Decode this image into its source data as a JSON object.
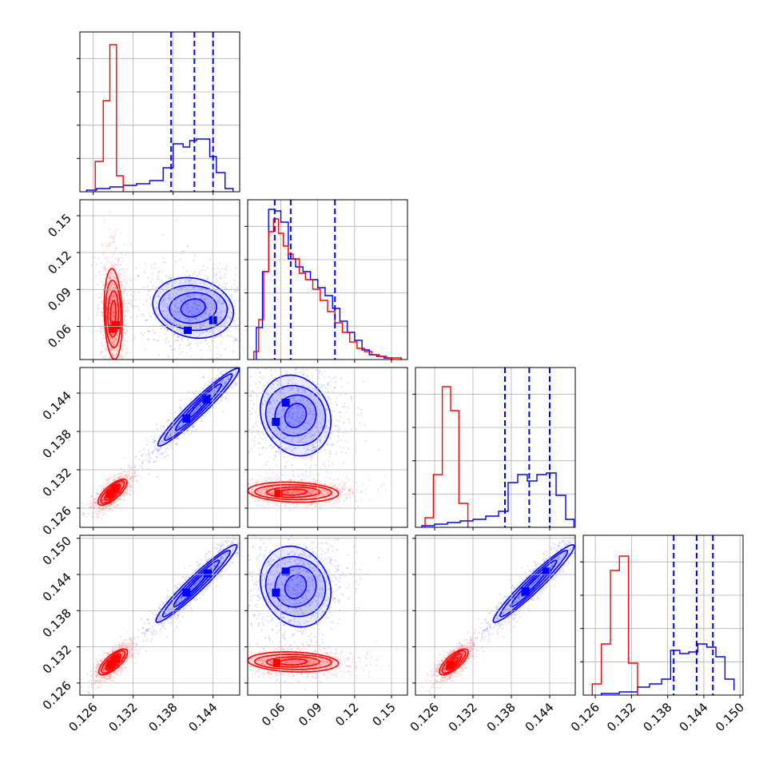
{
  "chart_data": {
    "type": "corner",
    "grid": true,
    "colors": {
      "red": "#ff0000",
      "blue": "#0000ff"
    },
    "series": [
      {
        "color": "#ff0000",
        "marker": "small points + contours"
      },
      {
        "color": "#0000ff",
        "marker": "small points + contours"
      }
    ],
    "parameters": [
      {
        "range": [
          0.124,
          0.148
        ],
        "ticks": [
          "0.126",
          "0.132",
          "0.138",
          "0.144"
        ]
      },
      {
        "range": [
          0.033,
          0.163
        ],
        "ticks": [
          "0.06",
          "0.09",
          "0.12",
          "0.15"
        ]
      },
      {
        "range": [
          0.123,
          0.148
        ],
        "ticks": [
          "0.126",
          "0.132",
          "0.138",
          "0.144"
        ]
      },
      {
        "range": [
          0.124,
          0.1505
        ],
        "ticks": [
          "0.126",
          "0.132",
          "0.138",
          "0.144",
          "0.150"
        ]
      }
    ],
    "histograms": [
      {
        "red": {
          "edges": [
            0.1263,
            0.1275,
            0.1285,
            0.1295,
            0.1305
          ],
          "heights": [
            0.19,
            0.57,
            0.92,
            0.1
          ]
        },
        "blue": {
          "edges": [
            0.125,
            0.1265,
            0.1285,
            0.1305,
            0.1325,
            0.1345,
            0.1365,
            0.138,
            0.1395,
            0.1405,
            0.1415,
            0.1425,
            0.1435,
            0.1445,
            0.1458,
            0.147
          ],
          "heights": [
            0.01,
            0.02,
            0.03,
            0.04,
            0.05,
            0.07,
            0.15,
            0.3,
            0.28,
            0.32,
            0.33,
            0.33,
            0.22,
            0.12,
            0.02
          ]
        },
        "quantiles": [
          0.1377,
          0.1412,
          0.144
        ]
      },
      {
        "red": {
          "edges": [
            0.038,
            0.042,
            0.046,
            0.05,
            0.054,
            0.058,
            0.062,
            0.066,
            0.07,
            0.075,
            0.08,
            0.086,
            0.092,
            0.098,
            0.104,
            0.11,
            0.116,
            0.122,
            0.128,
            0.134,
            0.14,
            0.146,
            0.152,
            0.158
          ],
          "heights": [
            0.05,
            0.25,
            0.55,
            0.8,
            0.88,
            0.79,
            0.71,
            0.66,
            0.63,
            0.54,
            0.5,
            0.44,
            0.37,
            0.3,
            0.23,
            0.17,
            0.11,
            0.07,
            0.05,
            0.03,
            0.02,
            0.01,
            0.01
          ]
        },
        "blue": {
          "edges": [
            0.04,
            0.045,
            0.05,
            0.055,
            0.06,
            0.066,
            0.072,
            0.078,
            0.084,
            0.09,
            0.096,
            0.102,
            0.108,
            0.114,
            0.12,
            0.126,
            0.132,
            0.138,
            0.144,
            0.15
          ],
          "heights": [
            0.2,
            0.55,
            0.94,
            0.93,
            0.86,
            0.63,
            0.58,
            0.55,
            0.5,
            0.45,
            0.4,
            0.32,
            0.24,
            0.17,
            0.12,
            0.06,
            0.03,
            0.02,
            0.01
          ]
        },
        "quantiles": [
          0.055,
          0.068,
          0.104
        ]
      },
      {
        "red": {
          "edges": [
            0.1245,
            0.1258,
            0.1272,
            0.1285,
            0.1298,
            0.1312
          ],
          "heights": [
            0.06,
            0.33,
            0.88,
            0.73,
            0.15
          ]
        },
        "blue": {
          "edges": [
            0.124,
            0.126,
            0.128,
            0.13,
            0.132,
            0.134,
            0.136,
            0.1375,
            0.139,
            0.1405,
            0.142,
            0.1435,
            0.145,
            0.1465,
            0.1478
          ],
          "heights": [
            0.01,
            0.02,
            0.03,
            0.04,
            0.05,
            0.07,
            0.1,
            0.28,
            0.33,
            0.29,
            0.33,
            0.34,
            0.2,
            0.05
          ]
        },
        "quantiles": [
          0.137,
          0.1408,
          0.144
        ]
      },
      {
        "red": {
          "edges": [
            0.1255,
            0.127,
            0.1285,
            0.13,
            0.1315,
            0.133
          ],
          "heights": [
            0.07,
            0.32,
            0.78,
            0.87,
            0.2
          ]
        },
        "blue": {
          "edges": [
            0.127,
            0.13,
            0.133,
            0.135,
            0.137,
            0.1385,
            0.14,
            0.1415,
            0.143,
            0.1445,
            0.146,
            0.1475,
            0.149
          ],
          "heights": [
            0.01,
            0.02,
            0.05,
            0.07,
            0.1,
            0.28,
            0.26,
            0.27,
            0.32,
            0.3,
            0.24,
            0.1,
            0.03
          ]
        },
        "quantiles": [
          0.139,
          0.1428,
          0.1455
        ]
      }
    ],
    "scatter_panels": [
      {
        "x": 0,
        "y": 1,
        "red": {
          "center": [
            0.129,
            0.07
          ],
          "density_peaks": [
            [
              0.1289,
              0.058
            ],
            [
              0.1294,
              0.061
            ]
          ]
        },
        "blue": {
          "center": [
            0.141,
            0.075
          ],
          "density_peaks": [
            [
              0.1402,
              0.057
            ],
            [
              0.144,
              0.065
            ]
          ]
        }
      },
      {
        "x": 0,
        "y": 2,
        "red": {
          "center": [
            0.1289,
            0.1285
          ],
          "density_peaks": [
            [
              0.1285,
              0.1282
            ],
            [
              0.1293,
              0.1291
            ]
          ]
        },
        "blue": {
          "center": [
            0.1418,
            0.1418
          ],
          "density_peaks": [
            [
              0.14,
              0.14
            ],
            [
              0.143,
              0.143
            ]
          ]
        }
      },
      {
        "x": 0,
        "y": 3,
        "red": {
          "center": [
            0.129,
            0.1295
          ],
          "density_peaks": [
            [
              0.1286,
              0.129
            ],
            [
              0.1294,
              0.13
            ]
          ]
        },
        "blue": {
          "center": [
            0.1415,
            0.1425
          ],
          "density_peaks": [
            [
              0.14,
              0.141
            ],
            [
              0.1432,
              0.1442
            ]
          ]
        }
      },
      {
        "x": 1,
        "y": 2,
        "red": {
          "center": [
            0.07,
            0.1285
          ],
          "density_peaks": [
            [
              0.058,
              0.1283
            ]
          ]
        },
        "blue": {
          "center": [
            0.072,
            0.1405
          ],
          "density_peaks": [
            [
              0.056,
              0.1395
            ],
            [
              0.064,
              0.1425
            ]
          ]
        }
      },
      {
        "x": 1,
        "y": 3,
        "red": {
          "center": [
            0.07,
            0.1295
          ],
          "density_peaks": [
            [
              0.057,
              0.1293
            ]
          ]
        },
        "blue": {
          "center": [
            0.072,
            0.142
          ],
          "density_peaks": [
            [
              0.056,
              0.141
            ],
            [
              0.064,
              0.1445
            ]
          ]
        }
      },
      {
        "x": 2,
        "y": 3,
        "red": {
          "center": [
            0.129,
            0.1295
          ],
          "density_peaks": [
            [
              0.1285,
              0.129
            ]
          ]
        },
        "blue": {
          "center": [
            0.1415,
            0.1425
          ],
          "density_peaks": [
            [
              0.1402,
              0.1412
            ],
            [
              0.1435,
              0.1445
            ]
          ]
        }
      }
    ]
  }
}
